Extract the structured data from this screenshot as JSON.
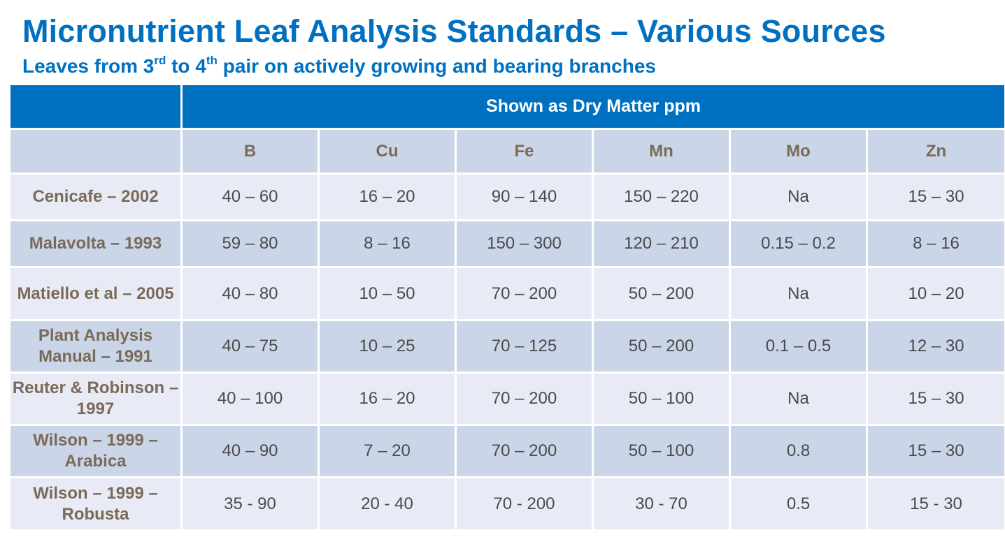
{
  "title": "Micronutrient Leaf Analysis Standards – Various Sources",
  "subtitle": {
    "part1": "Leaves from 3",
    "sup1": "rd",
    "part2": " to 4",
    "sup2": "th",
    "part3": " pair on actively growing and bearing branches"
  },
  "table": {
    "group_header": "Shown as Dry Matter ppm",
    "columns": [
      "B",
      "Cu",
      "Fe",
      "Mn",
      "Mo",
      "Zn"
    ],
    "rows": [
      {
        "source": "Cenicafe – 2002",
        "values": [
          "40 – 60",
          "16 – 20",
          "90 – 140",
          "150 – 220",
          "Na",
          "15 – 30"
        ]
      },
      {
        "source": "Malavolta – 1993",
        "values": [
          "59 – 80",
          "8 – 16",
          "150 – 300",
          "120 – 210",
          "0.15 – 0.2",
          "8 – 16"
        ]
      },
      {
        "source": "Matiello et al – 2005",
        "values": [
          "40 – 80",
          "10 – 50",
          "70 – 200",
          "50 – 200",
          "Na",
          "10 – 20"
        ]
      },
      {
        "source": "Plant Analysis Manual – 1991",
        "values": [
          "40 – 75",
          "10 – 25",
          "70 – 125",
          "50 – 200",
          "0.1 – 0.5",
          "12 – 30"
        ]
      },
      {
        "source": "Reuter & Robinson – 1997",
        "values": [
          "40 – 100",
          "16 – 20",
          "70 – 200",
          "50 – 100",
          "Na",
          "15 – 30"
        ]
      },
      {
        "source": "Wilson – 1999 – Arabica",
        "values": [
          "40 – 90",
          "7 – 20",
          "70 – 200",
          "50 – 100",
          "0.8",
          "15 – 30"
        ]
      },
      {
        "source": "Wilson – 1999 – Robusta",
        "values": [
          "35 - 90",
          "20 - 40",
          "70 - 200",
          "30 - 70",
          "0.5",
          "15 - 30"
        ]
      }
    ]
  }
}
